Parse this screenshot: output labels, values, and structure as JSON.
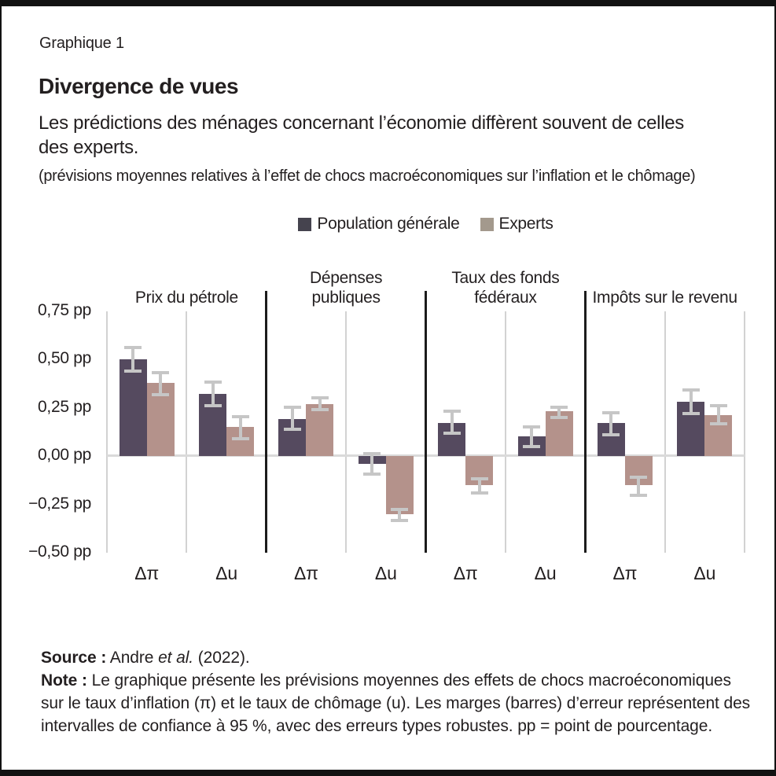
{
  "header": {
    "kicker": "Graphique 1",
    "title": "Divergence de vues",
    "subtitle_lines": [
      "Les prédictions des ménages concernant l’économie diffèrent souvent de celles",
      "des experts."
    ],
    "parenthetical": "(prévisions moyennes relatives à l’effet de chocs macroéconomiques sur l’inflation et le chômage)"
  },
  "legend": {
    "items": [
      {
        "label": "Population générale",
        "color": "#45434e"
      },
      {
        "label": "Experts",
        "color": "#a3998d"
      }
    ]
  },
  "chart_data": {
    "type": "bar",
    "unit": "pp",
    "ylim": [
      -0.5,
      0.75
    ],
    "yticks": [
      0.75,
      0.5,
      0.25,
      0,
      -0.25,
      -0.5
    ],
    "ytick_labels": [
      "0,75 pp",
      "0,50 pp",
      "0,25 pp",
      "0,00 pp",
      "−0,25 pp",
      "−0,50 pp"
    ],
    "series_names": [
      "Population générale",
      "Experts"
    ],
    "colors": {
      "population": "#554a5f",
      "experts": "#b4928b",
      "error_bar": "#c6c6c6",
      "zero_line": "#dadada",
      "gridline": "#d2d2d2",
      "separator": "#1c1c1c"
    },
    "legend_position": "top-center",
    "grid": "vertical-only",
    "panels": [
      {
        "title_lines": [
          "Prix du pétrole"
        ],
        "groups": [
          {
            "label": "Δπ",
            "bars": [
              {
                "series": "population",
                "value": 0.5,
                "ci": [
                  0.43,
                  0.57
                ]
              },
              {
                "series": "experts",
                "value": 0.38,
                "ci": [
                  0.31,
                  0.44
                ]
              }
            ]
          },
          {
            "label": "Δu",
            "bars": [
              {
                "series": "population",
                "value": 0.32,
                "ci": [
                  0.25,
                  0.39
                ]
              },
              {
                "series": "experts",
                "value": 0.15,
                "ci": [
                  0.08,
                  0.21
                ]
              }
            ]
          }
        ]
      },
      {
        "title_lines": [
          "Dépenses",
          "publiques"
        ],
        "groups": [
          {
            "label": "Δπ",
            "bars": [
              {
                "series": "population",
                "value": 0.19,
                "ci": [
                  0.13,
                  0.26
                ]
              },
              {
                "series": "experts",
                "value": 0.27,
                "ci": [
                  0.23,
                  0.31
                ]
              }
            ]
          },
          {
            "label": "Δu",
            "bars": [
              {
                "series": "population",
                "value": -0.04,
                "ci": [
                  -0.1,
                  0.02
                ]
              },
              {
                "series": "experts",
                "value": -0.3,
                "ci": [
                  -0.34,
                  -0.27
                ]
              }
            ]
          }
        ]
      },
      {
        "title_lines": [
          "Taux des fonds",
          "fédéraux"
        ],
        "groups": [
          {
            "label": "Δπ",
            "bars": [
              {
                "series": "population",
                "value": 0.17,
                "ci": [
                  0.11,
                  0.24
                ]
              },
              {
                "series": "experts",
                "value": -0.15,
                "ci": [
                  -0.2,
                  -0.11
                ]
              }
            ]
          },
          {
            "label": "Δu",
            "bars": [
              {
                "series": "population",
                "value": 0.1,
                "ci": [
                  0.04,
                  0.16
                ]
              },
              {
                "series": "experts",
                "value": 0.23,
                "ci": [
                  0.19,
                  0.26
                ]
              }
            ]
          }
        ]
      },
      {
        "title_lines": [
          "Impôts sur le revenu"
        ],
        "groups": [
          {
            "label": "Δπ",
            "bars": [
              {
                "series": "population",
                "value": 0.17,
                "ci": [
                  0.1,
                  0.23
                ]
              },
              {
                "series": "experts",
                "value": -0.15,
                "ci": [
                  -0.21,
                  -0.1
                ]
              }
            ]
          },
          {
            "label": "Δu",
            "bars": [
              {
                "series": "population",
                "value": 0.28,
                "ci": [
                  0.21,
                  0.35
                ]
              },
              {
                "series": "experts",
                "value": 0.21,
                "ci": [
                  0.16,
                  0.27
                ]
              }
            ]
          }
        ]
      }
    ]
  },
  "footer": {
    "source_label": "Source :",
    "source_pre": " Andre ",
    "source_italic": "et al.",
    "source_post": " (2022).",
    "note_label": "Note :",
    "note_text": " Le graphique présente les prévisions moyennes des effets de chocs macroéconomiques sur le taux d’inflation (π) et le taux de chômage (u). Les marges (barres) d’erreur représentent des intervalles de confiance à 95 %, avec des erreurs types robustes. pp = point de pourcentage."
  }
}
